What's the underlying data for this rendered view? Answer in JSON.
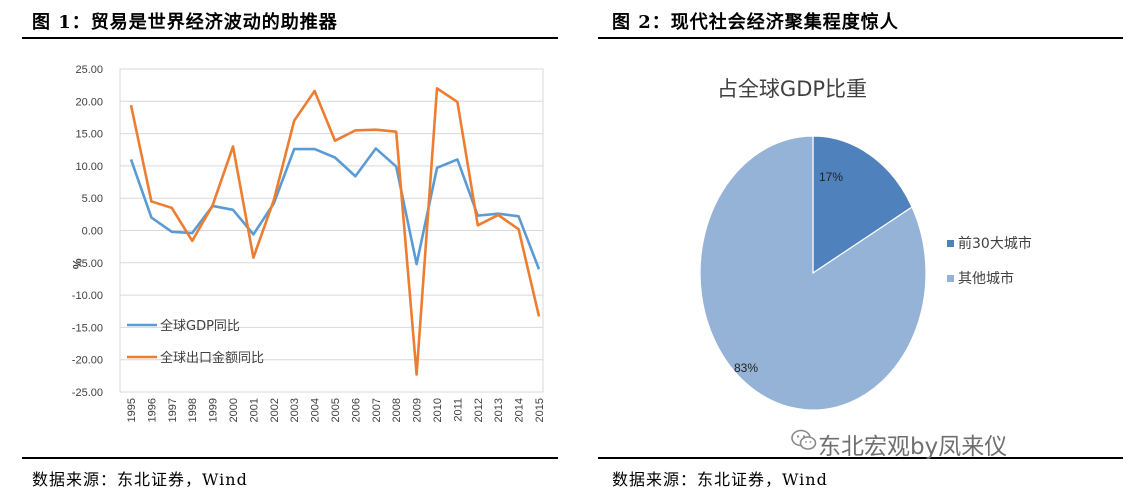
{
  "left": {
    "figure_title": "图 1：贸易是世界经济波动的助推器",
    "source": "数据来源：东北证券，Wind"
  },
  "right": {
    "figure_title": "图 2：现代社会经济聚集程度惊人",
    "source": "数据来源：东北证券，Wind"
  },
  "watermark": "东北宏观by凤来仪",
  "watermark_icon": "wechat-icon",
  "chart_data": [
    {
      "type": "line",
      "title": "",
      "xlabel": "",
      "ylabel": "%",
      "x": [
        "1995",
        "1996",
        "1997",
        "1998",
        "1999",
        "2000",
        "2001",
        "2002",
        "2003",
        "2004",
        "2005",
        "2006",
        "2007",
        "2008",
        "2009",
        "2010",
        "2011",
        "2012",
        "2013",
        "2014",
        "2015"
      ],
      "ylim": [
        -25,
        25
      ],
      "yticks": [
        "25.00",
        "20.00",
        "15.00",
        "10.00",
        "5.00",
        "0.00",
        "-5.00",
        "-10.00",
        "-15.00",
        "-20.00",
        "-25.00"
      ],
      "grid": true,
      "legend_position": "lower-left",
      "series": [
        {
          "name": "全球GDP同比",
          "color": "#5b9bd5",
          "values": [
            11.0,
            2.0,
            -0.2,
            -0.4,
            3.8,
            3.2,
            -0.6,
            4.2,
            12.6,
            12.6,
            11.3,
            8.4,
            12.7,
            9.9,
            -5.2,
            9.7,
            11.0,
            2.3,
            2.6,
            2.2,
            -6.0
          ]
        },
        {
          "name": "全球出口金额同比",
          "color": "#ed7d31",
          "values": [
            19.4,
            4.5,
            3.5,
            -1.6,
            3.9,
            13.0,
            -4.2,
            4.7,
            17.0,
            21.6,
            13.9,
            15.5,
            15.6,
            15.3,
            -22.3,
            22.0,
            19.9,
            0.8,
            2.4,
            0.2,
            -13.3
          ]
        }
      ]
    },
    {
      "type": "pie",
      "title": "占全球GDP比重",
      "series": [
        {
          "name": "前30大城市",
          "value": 17,
          "label": "17%",
          "color": "#4f81bd"
        },
        {
          "name": "其他城市",
          "value": 83,
          "label": "83%",
          "color": "#95b3d7"
        }
      ],
      "legend_position": "right"
    }
  ]
}
